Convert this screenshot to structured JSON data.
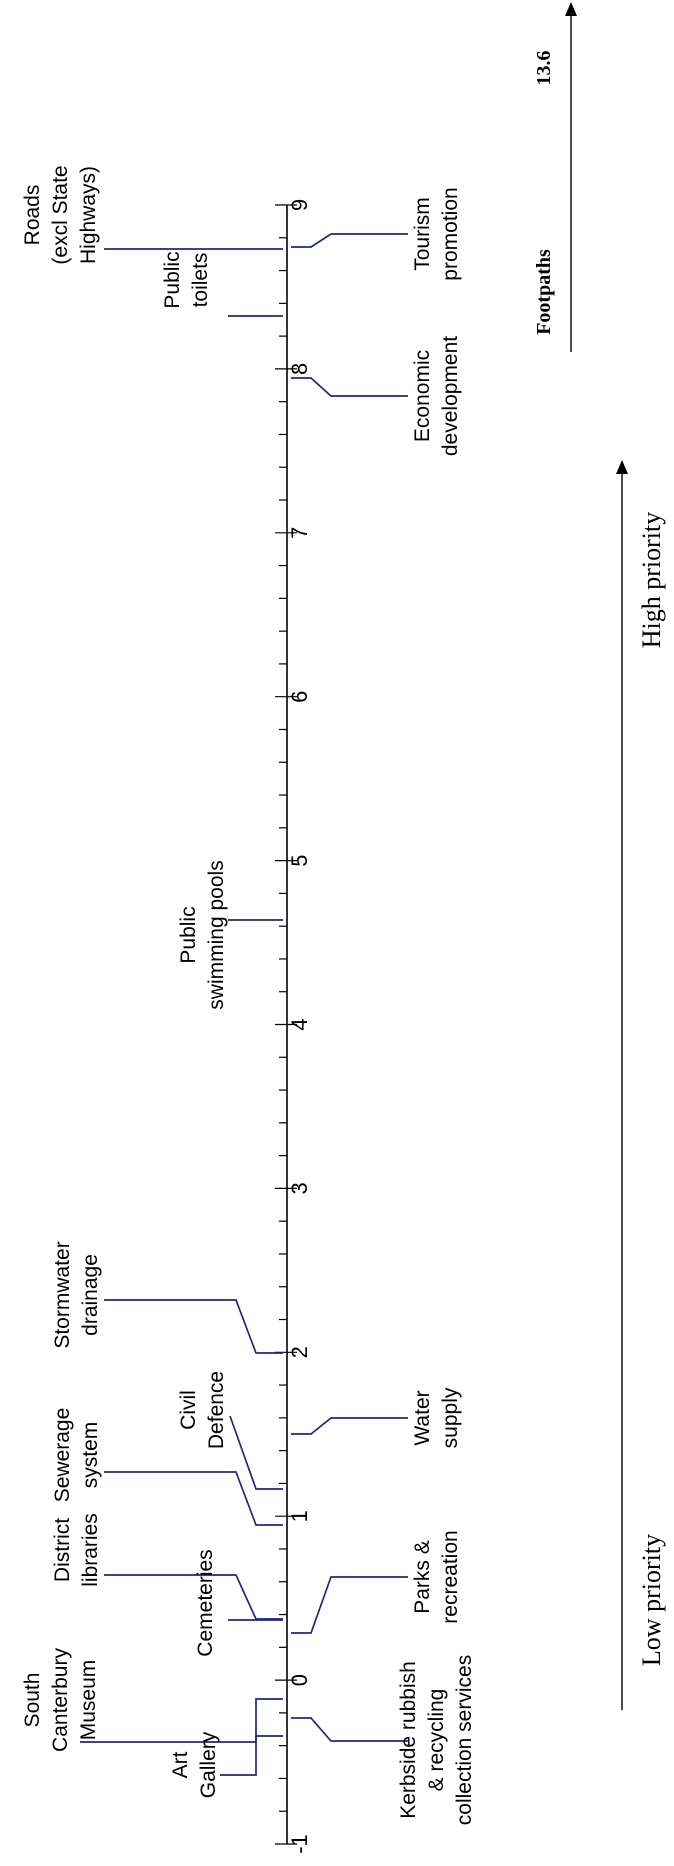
{
  "chart_data": {
    "type": "scatter",
    "axis": {
      "min": -1,
      "max": 9,
      "ticks": [
        -1,
        0,
        1,
        2,
        3,
        4,
        5,
        6,
        7,
        8,
        9
      ],
      "tick_labels": [
        "-1",
        "0",
        "1",
        "2",
        "3",
        "4",
        "5",
        "6",
        "7",
        "8",
        "9"
      ]
    },
    "points": [
      {
        "label": [
          "Art",
          "Gallery"
        ],
        "value": -0.2
      },
      {
        "label": [
          "South",
          "Canterbury",
          "Museum"
        ],
        "value": 0.2
      },
      {
        "label": [
          "Cemeteries"
        ],
        "value": 0.7
      },
      {
        "label": [
          "District",
          "libraries"
        ],
        "value": 0.7
      },
      {
        "label": [
          "Sewerage",
          "system"
        ],
        "value": 1.2
      },
      {
        "label": [
          "Civil",
          "Defence"
        ],
        "value": 1.45
      },
      {
        "label": [
          "Stormwater",
          "drainage"
        ],
        "value": 2.2
      },
      {
        "label": [
          "Public",
          "swimming pools"
        ],
        "value": 4.8
      },
      {
        "label": [
          "Public",
          "toilets"
        ],
        "value": 8.4
      },
      {
        "label": [
          "Roads",
          "(excl State",
          "Highways)"
        ],
        "value": 8.8
      },
      {
        "label": [
          "Kerbside rubbish",
          "& recycling",
          "collection services"
        ],
        "value": 0.1
      },
      {
        "label": [
          "Parks &",
          "recreation"
        ],
        "value": 0.6
      },
      {
        "label": [
          "Water",
          "supply"
        ],
        "value": 1.8
      },
      {
        "label": [
          "Economic",
          "development"
        ],
        "value": 7.9
      },
      {
        "label": [
          "Tourism",
          "promotion"
        ],
        "value": 8.8
      }
    ],
    "low_label": "Low priority",
    "high_label": "High priority",
    "off_scale": {
      "label": "Footpaths",
      "value": "13.6"
    }
  }
}
